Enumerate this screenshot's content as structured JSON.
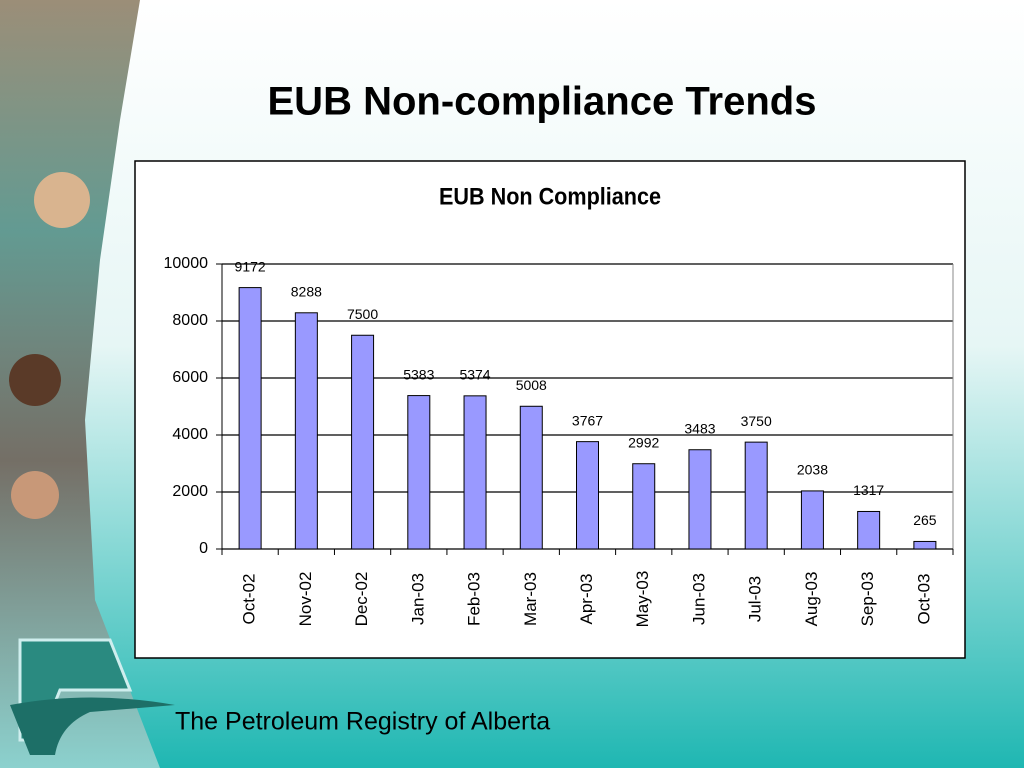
{
  "slide_title": "EUB Non-compliance Trends",
  "footer": "The Petroleum Registry of Alberta",
  "chart_data": {
    "type": "bar",
    "title": "EUB Non Compliance",
    "categories": [
      "Oct-02",
      "Nov-02",
      "Dec-02",
      "Jan-03",
      "Feb-03",
      "Mar-03",
      "Apr-03",
      "May-03",
      "Jun-03",
      "Jul-03",
      "Aug-03",
      "Sep-03",
      "Oct-03"
    ],
    "values": [
      9172,
      8288,
      7500,
      5383,
      5374,
      5008,
      3767,
      2992,
      3483,
      3750,
      2038,
      1317,
      265
    ],
    "color": "#9999ff",
    "ylim": [
      0,
      10000
    ],
    "yticks": [
      0,
      2000,
      4000,
      6000,
      8000,
      10000
    ],
    "grid": true
  }
}
